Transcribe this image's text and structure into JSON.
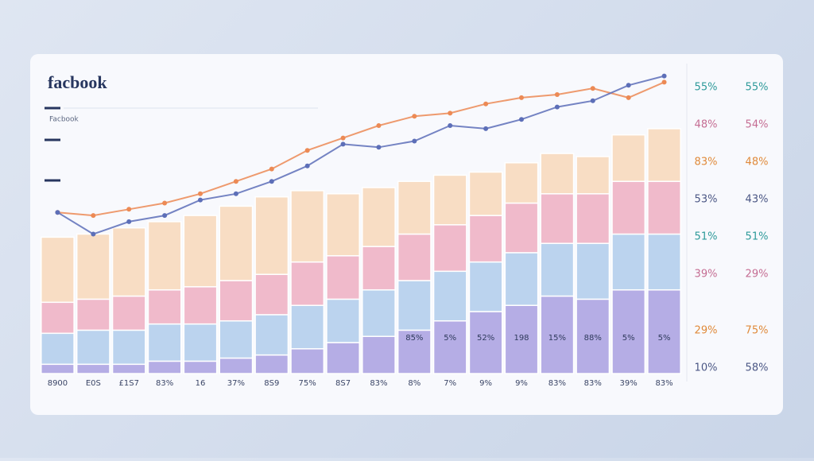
{
  "chart_data": {
    "type": "bar",
    "title": "facbook",
    "subtitle": "Facbook",
    "categories": [
      "8900",
      "E0S",
      "£1S7",
      "83%",
      "16",
      "37%",
      "8S9",
      "75%",
      "8S7",
      "83%",
      "8%",
      "7%",
      "9%",
      "9%",
      "83%",
      "83%",
      "39%",
      "83%"
    ],
    "series": [
      {
        "color": "#7d6fd2",
        "values": [
          3,
          3,
          3,
          4,
          4,
          5,
          6,
          8,
          10,
          12,
          14,
          17,
          20,
          22,
          25,
          24,
          27,
          27
        ]
      },
      {
        "color": "#8fb7e4",
        "values": [
          10,
          11,
          11,
          12,
          12,
          12,
          13,
          14,
          14,
          15,
          16,
          16,
          16,
          17,
          17,
          18,
          18,
          18
        ]
      },
      {
        "color": "#ec91ac",
        "values": [
          10,
          10,
          11,
          11,
          12,
          13,
          13,
          14,
          14,
          14,
          15,
          15,
          15,
          16,
          16,
          16,
          17,
          17
        ]
      },
      {
        "color": "#f7cda4",
        "values": [
          21,
          21,
          22,
          22,
          23,
          24,
          25,
          23,
          20,
          19,
          17,
          16,
          14,
          13,
          13,
          12,
          15,
          17
        ]
      }
    ],
    "lines": [
      {
        "color": "#ec8a55",
        "values": [
          52,
          51,
          53,
          55,
          58,
          62,
          66,
          72,
          76,
          80,
          83,
          84,
          87,
          89,
          90,
          92,
          89,
          94
        ]
      },
      {
        "color": "#5d6fb8",
        "values": [
          52,
          45,
          49,
          51,
          56,
          58,
          62,
          67,
          74,
          73,
          75,
          80,
          79,
          82,
          86,
          88,
          93,
          96
        ]
      }
    ],
    "value_labels": [
      "85%",
      "5%",
      "52%",
      "198",
      "15%",
      "88%",
      "5%",
      "5%"
    ],
    "side_labels": [
      [
        "55%",
        "55%"
      ],
      [
        "48%",
        "54%"
      ],
      [
        "83%",
        "48%"
      ],
      [
        "53%",
        "43%"
      ],
      [
        "51%",
        "51%"
      ],
      [
        "39%",
        "29%"
      ],
      [
        "29%",
        "75%"
      ],
      [
        "10%",
        "58%"
      ]
    ],
    "ylim": [
      0,
      100
    ]
  }
}
